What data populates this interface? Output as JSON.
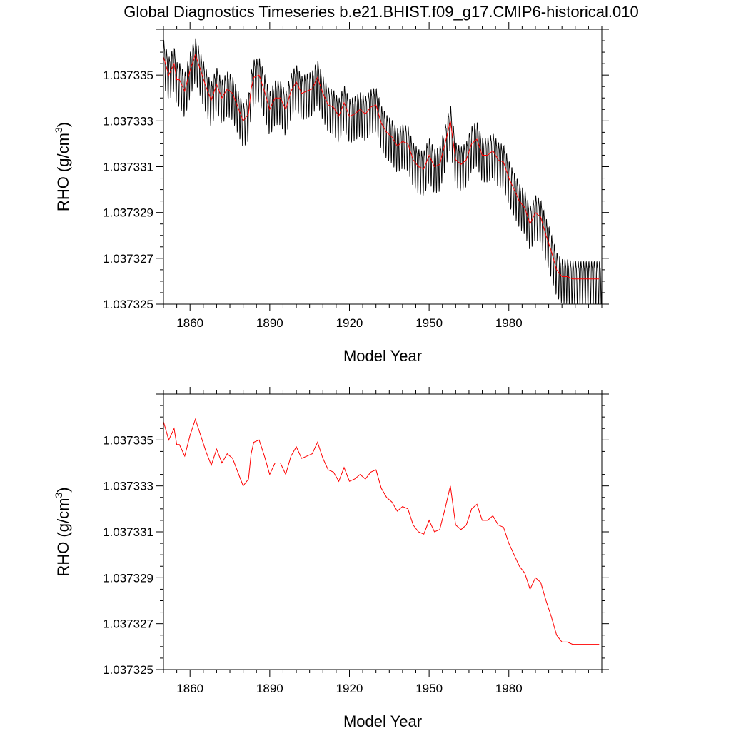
{
  "figure": {
    "title": "Global Diagnostics Timeseries b.e21.BHIST.f09_g17.CMIP6-historical.010"
  },
  "colors": {
    "monthly": "#000000",
    "annual": "#ff0000",
    "axes": "#000000",
    "background": "#ffffff"
  },
  "chart_data": [
    {
      "type": "line",
      "title": "",
      "xlabel": "Model Year",
      "ylabel_main": "RHO (g/cm",
      "ylabel_sup": "3",
      "ylabel_close": ")",
      "xlim": [
        1850,
        2015
      ],
      "ylim": [
        1.037325,
        1.037337
      ],
      "xticks": [
        1860,
        1890,
        1920,
        1950,
        1980
      ],
      "xtick_labels": [
        "1860",
        "1890",
        "1920",
        "1950",
        "1980"
      ],
      "yticks": [
        1.037325,
        1.037327,
        1.037329,
        1.037331,
        1.037333,
        1.037335
      ],
      "ytick_labels": [
        "1.037325",
        "1.037327",
        "1.037329",
        "1.037331",
        "1.037333",
        "1.037335"
      ],
      "grid": false,
      "legend": "none",
      "series": [
        {
          "style": "monthly, seasonal cycle of about 0.0000018 g/cm3 around the annual mean",
          "color": "#000000",
          "seasonal_amplitude": 9e-07
        },
        {
          "style": "annual mean",
          "color": "#ff0000",
          "x": [
            1850,
            1852,
            1854,
            1855,
            1856,
            1858,
            1860,
            1862,
            1864,
            1866,
            1868,
            1870,
            1872,
            1874,
            1876,
            1878,
            1880,
            1882,
            1883,
            1884,
            1886,
            1888,
            1890,
            1892,
            1894,
            1896,
            1898,
            1900,
            1902,
            1904,
            1906,
            1908,
            1910,
            1912,
            1914,
            1916,
            1918,
            1920,
            1922,
            1924,
            1926,
            1928,
            1930,
            1932,
            1934,
            1936,
            1938,
            1940,
            1942,
            1944,
            1946,
            1948,
            1950,
            1952,
            1954,
            1956,
            1958,
            1960,
            1962,
            1964,
            1966,
            1968,
            1970,
            1972,
            1974,
            1976,
            1978,
            1980,
            1982,
            1984,
            1986,
            1988,
            1990,
            1992,
            1994,
            1996,
            1998,
            2000,
            2002,
            2004,
            2006,
            2008,
            2010,
            2012,
            2014
          ],
          "values": [
            1.0373358,
            1.037335,
            1.0373355,
            1.0373348,
            1.0373348,
            1.0373343,
            1.0373352,
            1.0373359,
            1.0373352,
            1.0373345,
            1.0373339,
            1.0373346,
            1.037334,
            1.0373344,
            1.0373342,
            1.0373336,
            1.037333,
            1.0373333,
            1.0373344,
            1.0373349,
            1.037335,
            1.0373343,
            1.0373335,
            1.037334,
            1.037334,
            1.0373335,
            1.0373343,
            1.0373347,
            1.0373342,
            1.0373343,
            1.0373344,
            1.0373349,
            1.0373342,
            1.0373337,
            1.0373336,
            1.0373332,
            1.0373338,
            1.0373332,
            1.0373333,
            1.0373335,
            1.0373333,
            1.0373336,
            1.0373337,
            1.0373329,
            1.0373325,
            1.0373323,
            1.0373319,
            1.0373321,
            1.037332,
            1.0373313,
            1.037331,
            1.0373309,
            1.0373315,
            1.037331,
            1.0373311,
            1.037332,
            1.037333,
            1.0373313,
            1.0373311,
            1.0373313,
            1.037332,
            1.0373322,
            1.0373315,
            1.0373315,
            1.0373317,
            1.0373313,
            1.0373312,
            1.0373305,
            1.03733,
            1.0373295,
            1.0373292,
            1.0373285,
            1.037329,
            1.0373288,
            1.037328,
            1.0373273,
            1.0373265,
            1.0373262,
            1.0373262,
            1.0373261,
            1.0373261,
            1.0373261,
            1.0373261,
            1.0373261,
            1.0373261
          ]
        }
      ]
    },
    {
      "type": "line",
      "title": "",
      "xlabel": "Model Year",
      "ylabel_main": "RHO (g/cm",
      "ylabel_sup": "3",
      "ylabel_close": ")",
      "xlim": [
        1850,
        2015
      ],
      "ylim": [
        1.037325,
        1.037337
      ],
      "xticks": [
        1860,
        1890,
        1920,
        1950,
        1980
      ],
      "xtick_labels": [
        "1860",
        "1890",
        "1920",
        "1950",
        "1980"
      ],
      "yticks": [
        1.037325,
        1.037327,
        1.037329,
        1.037331,
        1.037333,
        1.037335
      ],
      "ytick_labels": [
        "1.037325",
        "1.037327",
        "1.037329",
        "1.037331",
        "1.037333",
        "1.037335"
      ],
      "grid": false,
      "legend": "none",
      "series": [
        {
          "style": "annual mean",
          "color": "#ff0000",
          "x": [
            1850,
            1852,
            1854,
            1855,
            1856,
            1858,
            1860,
            1862,
            1864,
            1866,
            1868,
            1870,
            1872,
            1874,
            1876,
            1878,
            1880,
            1882,
            1883,
            1884,
            1886,
            1888,
            1890,
            1892,
            1894,
            1896,
            1898,
            1900,
            1902,
            1904,
            1906,
            1908,
            1910,
            1912,
            1914,
            1916,
            1918,
            1920,
            1922,
            1924,
            1926,
            1928,
            1930,
            1932,
            1934,
            1936,
            1938,
            1940,
            1942,
            1944,
            1946,
            1948,
            1950,
            1952,
            1954,
            1956,
            1958,
            1960,
            1962,
            1964,
            1966,
            1968,
            1970,
            1972,
            1974,
            1976,
            1978,
            1980,
            1982,
            1984,
            1986,
            1988,
            1990,
            1992,
            1994,
            1996,
            1998,
            2000,
            2002,
            2004,
            2006,
            2008,
            2010,
            2012,
            2014
          ],
          "values": [
            1.0373358,
            1.037335,
            1.0373355,
            1.0373348,
            1.0373348,
            1.0373343,
            1.0373352,
            1.0373359,
            1.0373352,
            1.0373345,
            1.0373339,
            1.0373346,
            1.037334,
            1.0373344,
            1.0373342,
            1.0373336,
            1.037333,
            1.0373333,
            1.0373344,
            1.0373349,
            1.037335,
            1.0373343,
            1.0373335,
            1.037334,
            1.037334,
            1.0373335,
            1.0373343,
            1.0373347,
            1.0373342,
            1.0373343,
            1.0373344,
            1.0373349,
            1.0373342,
            1.0373337,
            1.0373336,
            1.0373332,
            1.0373338,
            1.0373332,
            1.0373333,
            1.0373335,
            1.0373333,
            1.0373336,
            1.0373337,
            1.0373329,
            1.0373325,
            1.0373323,
            1.0373319,
            1.0373321,
            1.037332,
            1.0373313,
            1.037331,
            1.0373309,
            1.0373315,
            1.037331,
            1.0373311,
            1.037332,
            1.037333,
            1.0373313,
            1.0373311,
            1.0373313,
            1.037332,
            1.0373322,
            1.0373315,
            1.0373315,
            1.0373317,
            1.0373313,
            1.0373312,
            1.0373305,
            1.03733,
            1.0373295,
            1.0373292,
            1.0373285,
            1.037329,
            1.0373288,
            1.037328,
            1.0373273,
            1.0373265,
            1.0373262,
            1.0373262,
            1.0373261,
            1.0373261,
            1.0373261,
            1.0373261,
            1.0373261,
            1.0373261
          ]
        }
      ]
    }
  ]
}
